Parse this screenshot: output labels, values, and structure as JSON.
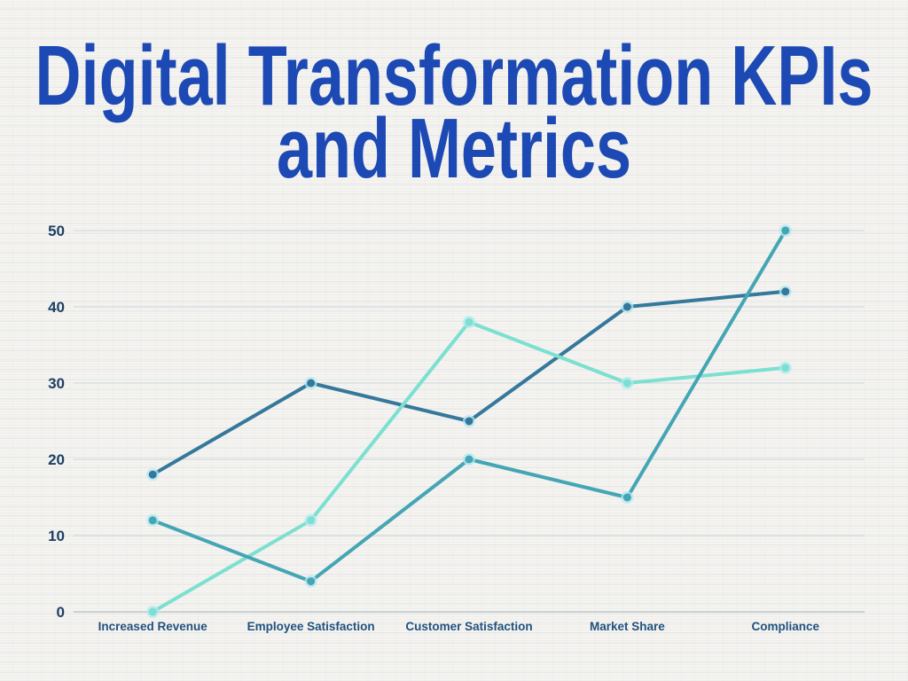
{
  "page": {
    "background_color": "#f5f4f1"
  },
  "title": {
    "line1": "Digital Transformation KPIs",
    "line2": "and Metrics",
    "color": "#1c49b4"
  },
  "chart_data": {
    "type": "line",
    "title": "Digital Transformation KPIs and Metrics",
    "categories": [
      "Increased Revenue",
      "Employee Satisfaction",
      "Customer Satisfaction",
      "Market Share",
      "Compliance"
    ],
    "series": [
      {
        "name": "dark-blue-line",
        "color": "#35789b",
        "values": [
          18,
          30,
          25,
          40,
          42
        ]
      },
      {
        "name": "mint-line",
        "color": "#7be0d0",
        "values": [
          0,
          12,
          38,
          30,
          32
        ]
      },
      {
        "name": "teal-line",
        "color": "#44a6b4",
        "values": [
          12,
          4,
          20,
          15,
          50
        ]
      }
    ],
    "xlabel": "",
    "ylabel": "",
    "ylim": [
      0,
      50
    ],
    "yticks": [
      0,
      10,
      20,
      30,
      40,
      50
    ],
    "grid": true,
    "legend_position": "none",
    "marker": "circle",
    "marker_halo_color": "rgba(178,232,242,0.75)",
    "gridline_color": "#ccd6da",
    "axis_line_color": "#a4b2b8",
    "ytick_label_color": "#1d3f63",
    "category_label_color": "#22517d"
  }
}
